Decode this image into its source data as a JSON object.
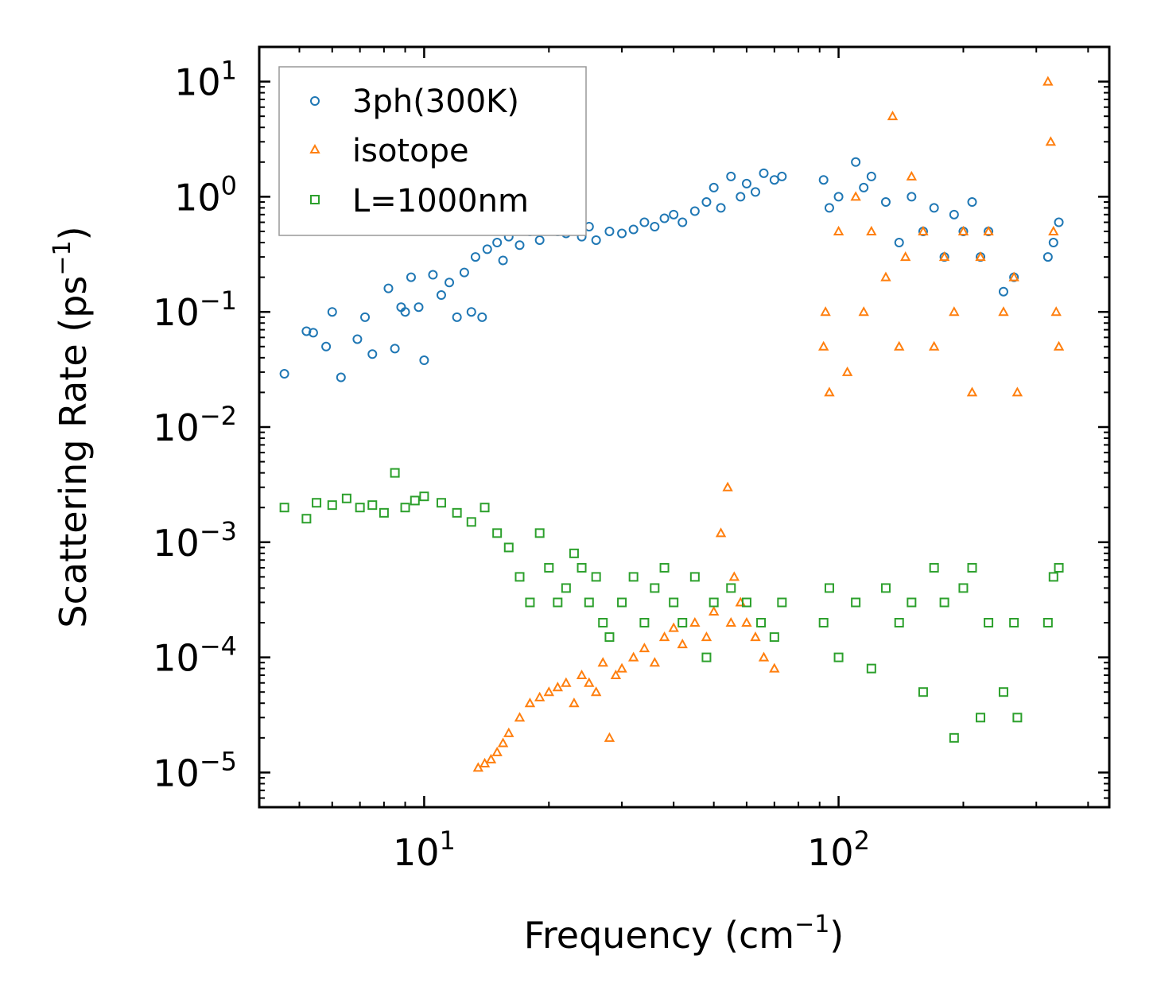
{
  "chart_data": {
    "type": "scatter",
    "xscale": "log",
    "yscale": "log",
    "xlim": [
      4,
      450
    ],
    "ylim": [
      5e-06,
      20
    ],
    "xlabel": "Frequency (cm",
    "xlabel_sup": "−1",
    "xlabel_end": ")",
    "ylabel": "Scattering Rate (ps",
    "ylabel_sup": "−1",
    "ylabel_end": ")",
    "x_ticks": [
      {
        "value": 10,
        "base": "10",
        "exp": "1"
      },
      {
        "value": 100,
        "base": "10",
        "exp": "2"
      }
    ],
    "y_ticks": [
      {
        "value": 10,
        "base": "10",
        "exp": "1"
      },
      {
        "value": 1,
        "base": "10",
        "exp": "0"
      },
      {
        "value": 0.1,
        "base": "10",
        "exp": "−1"
      },
      {
        "value": 0.01,
        "base": "10",
        "exp": "−2"
      },
      {
        "value": 0.001,
        "base": "10",
        "exp": "−3"
      },
      {
        "value": 0.0001,
        "base": "10",
        "exp": "−4"
      },
      {
        "value": 1e-05,
        "base": "10",
        "exp": "−5"
      }
    ],
    "legend_position": "top-left",
    "series": [
      {
        "name": "3ph(300K)",
        "marker": "circle",
        "color": "#1f77b4",
        "x": [
          4.6,
          5.2,
          5.4,
          5.8,
          6.0,
          6.3,
          6.9,
          7.2,
          7.5,
          8.2,
          8.5,
          8.8,
          9.0,
          9.3,
          9.7,
          10.0,
          10.5,
          11,
          11.5,
          12,
          12.5,
          13,
          13.3,
          13.8,
          14.2,
          15,
          15.5,
          16,
          17,
          18,
          19,
          20,
          21,
          22,
          23,
          24,
          25,
          26,
          28,
          30,
          32,
          34,
          36,
          38,
          40,
          42,
          45,
          48,
          50,
          52,
          55,
          58,
          60,
          63,
          66,
          70,
          73,
          92,
          95,
          100,
          110,
          115,
          120,
          130,
          140,
          150,
          160,
          170,
          180,
          190,
          200,
          210,
          220,
          230,
          250,
          265,
          320,
          330,
          340
        ],
        "y": [
          0.029,
          0.068,
          0.066,
          0.05,
          0.1,
          0.027,
          0.058,
          0.09,
          0.043,
          0.16,
          0.048,
          0.11,
          0.1,
          0.2,
          0.11,
          0.038,
          0.21,
          0.14,
          0.18,
          0.09,
          0.22,
          0.1,
          0.3,
          0.09,
          0.35,
          0.4,
          0.28,
          0.45,
          0.38,
          0.5,
          0.42,
          0.55,
          0.5,
          0.48,
          0.6,
          0.45,
          0.55,
          0.42,
          0.5,
          0.48,
          0.52,
          0.6,
          0.55,
          0.65,
          0.7,
          0.6,
          0.75,
          0.9,
          1.2,
          0.8,
          1.5,
          1.0,
          1.3,
          1.1,
          1.6,
          1.4,
          1.5,
          1.4,
          0.8,
          1.0,
          2.0,
          1.2,
          1.5,
          0.9,
          0.4,
          1.0,
          0.5,
          0.8,
          0.3,
          0.7,
          0.5,
          0.9,
          0.3,
          0.5,
          0.15,
          0.2,
          0.3,
          0.4,
          0.6
        ]
      },
      {
        "name": "isotope",
        "marker": "triangle",
        "color": "#ff7f0e",
        "x": [
          13.5,
          14,
          14.5,
          15,
          15.5,
          16,
          17,
          18,
          19,
          20,
          21,
          22,
          23,
          24,
          25,
          26,
          27,
          28,
          29,
          30,
          32,
          34,
          36,
          38,
          40,
          42,
          45,
          48,
          50,
          52,
          54,
          55,
          56,
          58,
          60,
          63,
          66,
          70,
          92,
          93,
          95,
          100,
          105,
          110,
          115,
          120,
          130,
          135,
          140,
          145,
          150,
          160,
          170,
          180,
          190,
          200,
          210,
          220,
          230,
          250,
          265,
          270,
          320,
          325,
          330,
          335,
          340
        ],
        "y": [
          1.1e-05,
          1.2e-05,
          1.3e-05,
          1.5e-05,
          1.8e-05,
          2.2e-05,
          3e-05,
          4e-05,
          4.5e-05,
          5e-05,
          5.5e-05,
          6e-05,
          4e-05,
          7e-05,
          6e-05,
          5e-05,
          9e-05,
          2e-05,
          7e-05,
          8e-05,
          0.0001,
          0.00012,
          9e-05,
          0.00015,
          0.00018,
          0.00013,
          0.0002,
          0.00015,
          0.00025,
          0.0012,
          0.003,
          0.0002,
          0.0005,
          0.0003,
          0.0002,
          0.00015,
          0.0001,
          8e-05,
          0.05,
          0.1,
          0.02,
          0.5,
          0.03,
          1.0,
          0.1,
          0.5,
          0.2,
          5.0,
          0.05,
          0.3,
          1.5,
          0.5,
          0.05,
          0.3,
          0.1,
          0.5,
          0.02,
          0.3,
          0.5,
          0.1,
          0.2,
          0.02,
          10,
          3.0,
          0.5,
          0.1,
          0.05
        ]
      },
      {
        "name": "L=1000nm",
        "marker": "square",
        "color": "#2ca02c",
        "x": [
          4.6,
          5.2,
          5.5,
          6.0,
          6.5,
          7.0,
          7.5,
          8.0,
          8.5,
          9.0,
          9.5,
          10,
          11,
          12,
          13,
          14,
          15,
          16,
          17,
          18,
          19,
          20,
          21,
          22,
          23,
          24,
          25,
          26,
          27,
          28,
          30,
          32,
          34,
          36,
          38,
          40,
          42,
          45,
          48,
          50,
          55,
          60,
          65,
          70,
          73,
          92,
          95,
          100,
          110,
          120,
          130,
          140,
          150,
          160,
          170,
          180,
          190,
          200,
          210,
          220,
          230,
          250,
          265,
          270,
          320,
          330,
          340
        ],
        "y": [
          0.002,
          0.0016,
          0.0022,
          0.0021,
          0.0024,
          0.002,
          0.0021,
          0.0018,
          0.004,
          0.002,
          0.0023,
          0.0025,
          0.0022,
          0.0018,
          0.0015,
          0.002,
          0.0012,
          0.0009,
          0.0005,
          0.0003,
          0.0012,
          0.0006,
          0.0003,
          0.0004,
          0.0008,
          0.0006,
          0.0003,
          0.0005,
          0.0002,
          0.00015,
          0.0003,
          0.0005,
          0.0002,
          0.0004,
          0.0006,
          0.0003,
          0.0002,
          0.0005,
          0.0001,
          0.0003,
          0.0004,
          0.0003,
          0.0002,
          0.00015,
          0.0003,
          0.0002,
          0.0004,
          0.0001,
          0.0003,
          8e-05,
          0.0004,
          0.0002,
          0.0003,
          5e-05,
          0.0006,
          0.0003,
          2e-05,
          0.0004,
          0.0006,
          3e-05,
          0.0002,
          5e-05,
          0.0002,
          3e-05,
          0.0002,
          0.0005,
          0.0006
        ]
      }
    ]
  }
}
